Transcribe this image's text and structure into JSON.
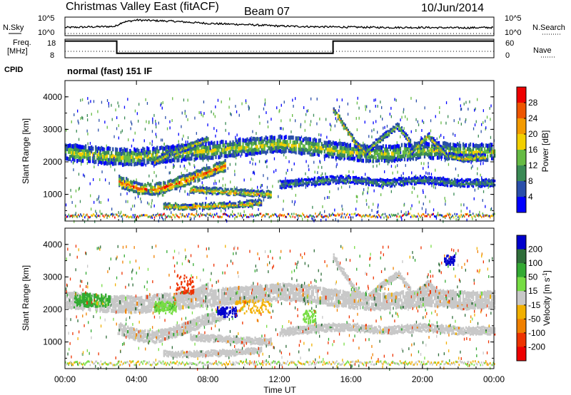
{
  "header": {
    "station": "Christmas Valley East (fitACF)",
    "beam": "Beam 07",
    "date": "10/Jun/2014"
  },
  "params": {
    "nsky_label": "N.Sky",
    "nsky_ticks": [
      "10^5",
      "10^0"
    ],
    "nsearch_label": "N.Search",
    "nsearch_ticks": [
      "10^5",
      "10^0"
    ],
    "freq_label": [
      "Freq.",
      "[MHz]"
    ],
    "freq_ticks": [
      "18",
      "8"
    ],
    "nave_label": "Nave",
    "nave_ticks": [
      "60",
      "0"
    ],
    "cpid_label": "CPID",
    "cpid_value": "normal (fast) 151 IF"
  },
  "colors": {
    "power_scale": [
      "#0000ff",
      "#2a4faa",
      "#3a8a55",
      "#66bb44",
      "#f2cf00",
      "#f39a00",
      "#ee5500",
      "#ee0000"
    ],
    "velocity_scale": [
      "#0000cc",
      "#2f6e3a",
      "#33aa33",
      "#77dd44",
      "#c8c8c8",
      "#f2b000",
      "#f08000",
      "#ee3300",
      "#ee0000"
    ]
  },
  "chart_data": [
    {
      "type": "line",
      "name": "params-nsky",
      "x": [
        0,
        2.8,
        3.2,
        4,
        6,
        8,
        10,
        12,
        14,
        16,
        18,
        20,
        22,
        24
      ],
      "y": [
        2.2,
        2.5,
        3.6,
        4.2,
        3.9,
        3.3,
        3.0,
        2.6,
        2.4,
        2.3,
        2.2,
        2.2,
        2.1,
        2.2
      ],
      "ylim": [
        0,
        5
      ]
    },
    {
      "type": "line",
      "name": "params-frequency",
      "x": [
        0,
        2.9,
        2.9,
        15.0,
        15.0,
        24
      ],
      "y": [
        17,
        17,
        10.4,
        10.4,
        17,
        17
      ],
      "ylim": [
        8,
        18
      ]
    },
    {
      "type": "heatmap",
      "name": "power",
      "xlabel": "Time UT",
      "ylabel": "Slant Range [km]",
      "colorbar_label": "Power [dB]",
      "colorbar_ticks": [
        "28",
        "24",
        "20",
        "16",
        "12",
        "8",
        "4"
      ],
      "x_ticks": [
        "00:00",
        "04:00",
        "08:00",
        "12:00",
        "16:00",
        "20:00",
        "00:00"
      ],
      "y_ticks": [
        "4000",
        "3000",
        "2000",
        "1000"
      ],
      "xlim": [
        0,
        24
      ],
      "ylim": [
        180,
        4500
      ],
      "clim": [
        0,
        32
      ],
      "bands": [
        {
          "t": [
            0,
            1,
            2,
            3,
            4,
            5,
            6,
            7,
            8,
            9,
            10,
            11,
            12,
            13,
            14,
            15,
            16,
            17,
            18,
            19,
            20,
            21,
            22,
            23,
            24
          ],
          "r": [
            2300,
            2250,
            2200,
            2150,
            2150,
            2200,
            2250,
            2300,
            2350,
            2400,
            2450,
            2500,
            2550,
            2500,
            2450,
            2350,
            2300,
            2250,
            2250,
            2300,
            2350,
            2350,
            2300,
            2300,
            2300
          ],
          "w": 420,
          "p": 16
        },
        {
          "t": [
            3,
            4,
            5,
            6,
            7,
            8,
            9
          ],
          "r": [
            1400,
            1200,
            1150,
            1300,
            1500,
            1700,
            1900
          ],
          "w": 280,
          "p": 26
        },
        {
          "t": [
            5.5,
            7,
            8.5,
            10,
            11
          ],
          "r": [
            640,
            620,
            650,
            700,
            750
          ],
          "w": 140,
          "p": 22
        },
        {
          "t": [
            7,
            8.5,
            10,
            11.5
          ],
          "r": [
            1150,
            1100,
            1050,
            1000
          ],
          "w": 150,
          "p": 22
        },
        {
          "t": [
            5,
            6,
            7,
            8
          ],
          "r": [
            2000,
            2300,
            2500,
            2700
          ],
          "w": 150,
          "p": 18
        },
        {
          "t": [
            15.0,
            15.6,
            16.2,
            16.8
          ],
          "r": [
            3600,
            3100,
            2600,
            2300
          ],
          "w": 140,
          "p": 22
        },
        {
          "t": [
            16.8,
            17.6,
            18.6,
            19.3
          ],
          "r": [
            2300,
            2700,
            3100,
            2600
          ],
          "w": 150,
          "p": 16
        },
        {
          "t": [
            19.3,
            20.3,
            21.3,
            22.3,
            23.5
          ],
          "r": [
            2300,
            2800,
            2200,
            2100,
            2150
          ],
          "w": 160,
          "p": 18
        },
        {
          "t": [
            12,
            13,
            14,
            15,
            16,
            17,
            18,
            19,
            20,
            21,
            22,
            23,
            24
          ],
          "r": [
            1300,
            1350,
            1400,
            1450,
            1450,
            1400,
            1350,
            1400,
            1450,
            1400,
            1350,
            1350,
            1350
          ],
          "w": 180,
          "p": 10
        }
      ]
    },
    {
      "type": "heatmap",
      "name": "velocity",
      "xlabel": "Time UT",
      "ylabel": "Slant Range [km]",
      "colorbar_label": "Velocity [m s^-1]",
      "colorbar_ticks": [
        "200",
        "100",
        "50",
        "15",
        "-15",
        "-50",
        "-100",
        "-200"
      ],
      "x_ticks": [
        "00:00",
        "04:00",
        "08:00",
        "12:00",
        "16:00",
        "20:00",
        "00:00"
      ],
      "y_ticks": [
        "4000",
        "3000",
        "2000",
        "1000"
      ],
      "xlim": [
        0,
        24
      ],
      "ylim": [
        180,
        4500
      ],
      "clim": [
        -250,
        250
      ],
      "patches": [
        {
          "t": [
            0.5,
            2.5
          ],
          "r": [
            2100,
            2500
          ],
          "v": 60
        },
        {
          "t": [
            6.2,
            7.2
          ],
          "r": [
            2500,
            3100
          ],
          "v": -150
        },
        {
          "t": [
            8.5,
            9.6
          ],
          "r": [
            1800,
            2100
          ],
          "v": 220
        },
        {
          "t": [
            5.0,
            6.2
          ],
          "r": [
            1900,
            2250
          ],
          "v": 40
        },
        {
          "t": [
            9.5,
            11.5
          ],
          "r": [
            1900,
            2300
          ],
          "v": -40
        },
        {
          "t": [
            21.2,
            21.8
          ],
          "r": [
            3400,
            3700
          ],
          "v": 240
        },
        {
          "t": [
            13.3,
            14.0
          ],
          "r": [
            1600,
            2000
          ],
          "v": 30
        }
      ]
    }
  ]
}
